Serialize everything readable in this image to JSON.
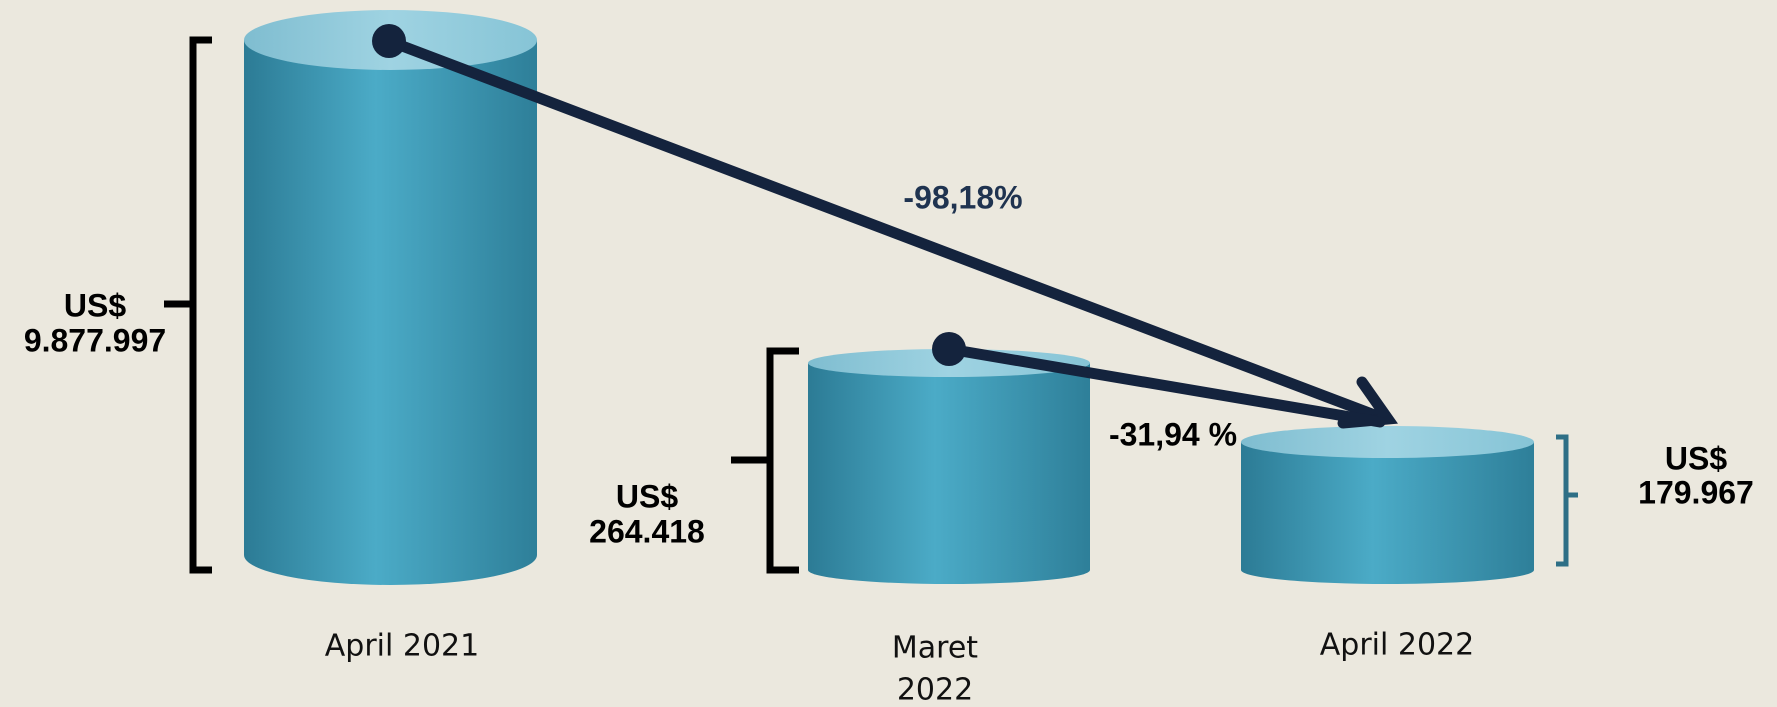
{
  "columns": [
    {
      "label": "April 2021",
      "currency": "US$",
      "amount": "9.877.997"
    },
    {
      "label_lines": [
        "Maret",
        "2022"
      ],
      "currency": "US$",
      "amount": "264.418"
    },
    {
      "label": "April 2022",
      "currency": "US$",
      "amount": "179.967"
    }
  ],
  "changes": [
    "-98,18%",
    "-31,94 %"
  ]
}
